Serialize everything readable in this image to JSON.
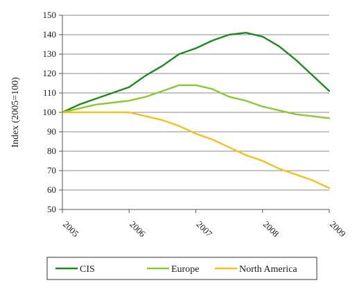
{
  "chart_data": {
    "type": "line",
    "ylabel": "Index (2005=100)",
    "xlabel": "",
    "title": "",
    "x_ticks": [
      "2005",
      "2006",
      "2007",
      "2008",
      "2009"
    ],
    "xlim": [
      2005,
      2009
    ],
    "ylim": [
      50,
      150
    ],
    "y_ticks": [
      50,
      60,
      70,
      80,
      90,
      100,
      110,
      120,
      130,
      140,
      150
    ],
    "grid": "horizontal",
    "legend_position": "bottom",
    "series": [
      {
        "name": "CIS",
        "color": "#1e8a1e",
        "x": [
          2005,
          2005.25,
          2005.5,
          2005.75,
          2006,
          2006.25,
          2006.5,
          2006.75,
          2007,
          2007.25,
          2007.5,
          2007.75,
          2008,
          2008.25,
          2008.5,
          2008.75,
          2009
        ],
        "y": [
          100,
          104,
          107,
          110,
          113,
          119,
          124,
          130,
          133,
          137,
          140,
          141,
          139,
          134,
          127,
          119,
          111
        ]
      },
      {
        "name": "Europe",
        "color": "#8cc832",
        "x": [
          2005,
          2005.25,
          2005.5,
          2005.75,
          2006,
          2006.25,
          2006.5,
          2006.75,
          2007,
          2007.25,
          2007.5,
          2007.75,
          2008,
          2008.25,
          2008.5,
          2008.75,
          2009
        ],
        "y": [
          100,
          102,
          104,
          105,
          106,
          108,
          111,
          114,
          114,
          112,
          108,
          106,
          103,
          101,
          99,
          98,
          97
        ]
      },
      {
        "name": "North America",
        "color": "#f5c21b",
        "x": [
          2005,
          2005.25,
          2005.5,
          2005.75,
          2006,
          2006.25,
          2006.5,
          2006.75,
          2007,
          2007.25,
          2007.5,
          2007.75,
          2008,
          2008.25,
          2008.5,
          2008.75,
          2009
        ],
        "y": [
          100,
          100,
          100,
          100,
          100,
          98,
          96,
          93,
          89,
          86,
          82,
          78,
          75,
          71,
          68,
          65,
          61
        ]
      }
    ]
  }
}
